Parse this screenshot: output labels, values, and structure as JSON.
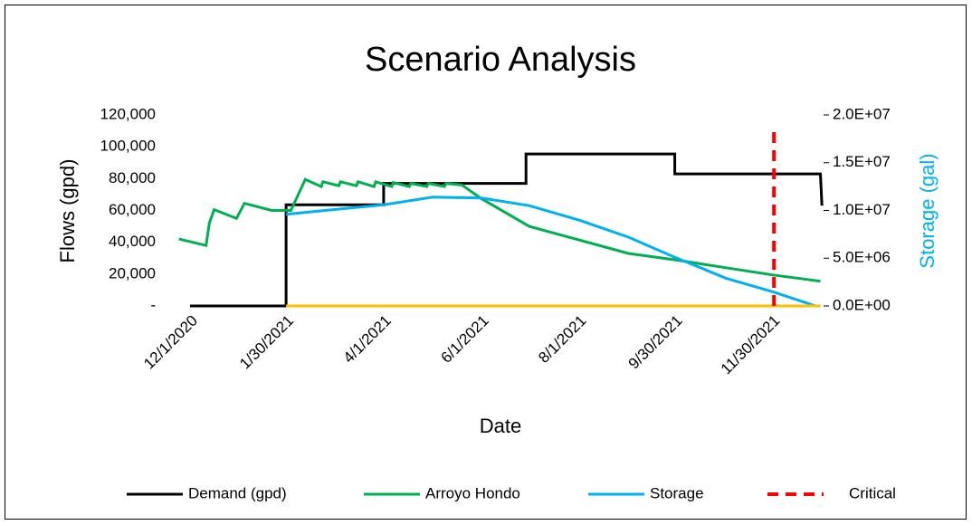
{
  "chart_data": {
    "type": "line",
    "title": "Scenario Analysis",
    "xlabel": "Date",
    "ylabel": "Flows (gpd)",
    "y2label": "Storage (gal)",
    "y2label_color": "#00b0f0",
    "xlim": [
      "11/14/2020",
      "1/1/2022"
    ],
    "xticks": [
      "12/1/2020",
      "1/30/2021",
      "4/1/2021",
      "6/1/2021",
      "8/1/2021",
      "9/30/2021",
      "11/30/2021"
    ],
    "ylim": [
      0,
      120000
    ],
    "yticks": [
      {
        "value": 0,
        "label": "-"
      },
      {
        "value": 20000,
        "label": "20,000"
      },
      {
        "value": 40000,
        "label": "40,000"
      },
      {
        "value": 60000,
        "label": "60,000"
      },
      {
        "value": 80000,
        "label": "80,000"
      },
      {
        "value": 100000,
        "label": "100,000"
      },
      {
        "value": 120000,
        "label": "120,000"
      }
    ],
    "y2lim": [
      0,
      20000000
    ],
    "y2ticks": [
      {
        "value": 0,
        "label": "0.0E+00"
      },
      {
        "value": 5000000,
        "label": "5.0E+06"
      },
      {
        "value": 10000000,
        "label": "1.0E+07"
      },
      {
        "value": 15000000,
        "label": "1.5E+07"
      },
      {
        "value": 20000000,
        "label": "2.0E+07"
      }
    ],
    "grid": false,
    "legend": "bottom",
    "series": [
      {
        "name": "Demand (gpd)",
        "color": "#000000",
        "x": [
          "12/1/2020",
          "1/30/2021",
          "1/30/2021",
          "4/1/2021",
          "4/1/2021",
          "6/29/2021",
          "6/29/2021",
          "9/30/2021",
          "9/30/2021",
          "12/30/2021",
          "12/31/2021"
        ],
        "values": [
          0,
          0,
          63500,
          63500,
          77000,
          77000,
          95500,
          95500,
          83000,
          83000,
          63000
        ]
      },
      {
        "name": "Arroyo Hondo",
        "color": "#00b050",
        "x": [
          "11/24/2020",
          "12/11/2020",
          "12/13/2020",
          "12/16/2020",
          "12/30/2020",
          "1/4/2021",
          "1/21/2021",
          "2/2/2021",
          "2/11/2021",
          "2/21/2021",
          "2/22/2021",
          "3/4/2021",
          "3/5/2021",
          "3/15/2021",
          "3/16/2021",
          "3/26/2021",
          "3/27/2021",
          "4/6/2021",
          "4/7/2021",
          "4/17/2021",
          "4/18/2021",
          "4/28/2021",
          "4/29/2021",
          "5/9/2021",
          "5/10/2021",
          "5/20/2021",
          "6/1/2021",
          "7/1/2021",
          "8/1/2021",
          "9/1/2021",
          "9/30/2021",
          "11/1/2021",
          "11/30/2021",
          "12/30/2021"
        ],
        "values": [
          42000,
          38000,
          52000,
          60500,
          55000,
          64500,
          60000,
          60000,
          79500,
          75000,
          78000,
          75500,
          78000,
          75500,
          78000,
          75000,
          78000,
          75000,
          77500,
          75000,
          77000,
          75000,
          77000,
          75000,
          77000,
          76000,
          67500,
          50000,
          41500,
          33000,
          29000,
          24000,
          19500,
          15500
        ]
      },
      {
        "name": "Storage",
        "color": "#00b0f0",
        "axis": "y2",
        "x": [
          "1/30/2021",
          "4/1/2021",
          "5/2/2021",
          "6/1/2021",
          "7/1/2021",
          "8/1/2021",
          "9/1/2021",
          "9/30/2021",
          "11/1/2021",
          "11/30/2021",
          "12/27/2021"
        ],
        "values": [
          9600000,
          10600000,
          11400000,
          11300000,
          10500000,
          9000000,
          7200000,
          5100000,
          2900000,
          1500000,
          0
        ]
      },
      {
        "color": "#ffc000",
        "x": [
          "1/30/2021",
          "12/30/2021"
        ],
        "values": [
          0,
          0
        ]
      },
      {
        "name": "Critical",
        "color": "#ff0000",
        "dashed": true,
        "x": [
          "12/1/2021",
          "12/1/2021"
        ],
        "values": [
          0,
          111000
        ]
      }
    ]
  }
}
